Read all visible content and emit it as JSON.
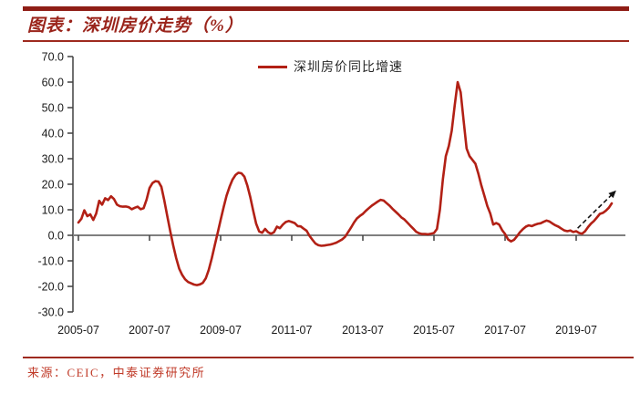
{
  "header": {
    "title": "图表：深圳房价走势（%）"
  },
  "footer": {
    "source": "来源：CEIC，中泰证券研究所"
  },
  "colors": {
    "accent_dark": "#8F1D15",
    "rule_red": "#9E2A1F",
    "title_text": "#9A241B",
    "source_text": "#C03A28",
    "line": "#B22015",
    "zero_line": "#7f7f7f",
    "axis": "#404040",
    "arrow": "#141414"
  },
  "chart_data": {
    "type": "line",
    "title": "深圳房价走势（%）",
    "legend": [
      {
        "name": "深圳房价同比增速",
        "color": "#B22015"
      }
    ],
    "freq": "monthly",
    "x_start": "2005-07",
    "x_end": "2020-07",
    "x_tick_labels": [
      "2005-07",
      "2007-07",
      "2009-07",
      "2011-07",
      "2013-07",
      "2015-07",
      "2017-07",
      "2019-07"
    ],
    "y_tick_labels": [
      "70.0",
      "60.0",
      "50.0",
      "40.0",
      "30.0",
      "20.0",
      "10.0",
      "0.0",
      "-10.0",
      "-20.0",
      "-30.0"
    ],
    "ylim": [
      -30,
      70
    ],
    "grid": false,
    "legend_position": "top-center",
    "values": [
      5.0,
      6.5,
      9.8,
      7.5,
      8.2,
      6.0,
      8.5,
      13.5,
      12.0,
      14.5,
      13.8,
      15.3,
      14.2,
      12.0,
      11.4,
      11.2,
      11.3,
      11.0,
      10.2,
      10.8,
      11.2,
      10.2,
      10.6,
      14.0,
      18.5,
      20.5,
      21.2,
      21.0,
      19.0,
      13.5,
      7.5,
      1.5,
      -4.0,
      -9.0,
      -13.0,
      -15.5,
      -17.2,
      -18.3,
      -18.8,
      -19.3,
      -19.5,
      -19.2,
      -18.6,
      -16.8,
      -13.5,
      -9.0,
      -4.0,
      1.0,
      6.0,
      11.0,
      15.5,
      19.0,
      21.8,
      23.6,
      24.5,
      24.3,
      23.0,
      19.5,
      15.0,
      9.5,
      4.5,
      1.5,
      1.0,
      2.5,
      1.2,
      0.6,
      1.2,
      3.4,
      2.8,
      4.2,
      5.2,
      5.6,
      5.2,
      4.8,
      3.6,
      3.5,
      2.6,
      1.8,
      -0.2,
      -1.8,
      -3.2,
      -3.9,
      -4.1,
      -4.0,
      -3.8,
      -3.6,
      -3.3,
      -2.9,
      -2.3,
      -1.6,
      -0.6,
      1.2,
      3.0,
      5.0,
      6.6,
      7.6,
      8.4,
      9.6,
      10.6,
      11.6,
      12.4,
      13.2,
      13.9,
      13.6,
      12.6,
      11.6,
      10.4,
      9.3,
      8.2,
      7.0,
      6.2,
      5.0,
      3.8,
      2.6,
      1.4,
      0.8,
      0.5,
      0.5,
      0.4,
      0.6,
      0.9,
      2.5,
      10.0,
      22.0,
      31.0,
      35.0,
      41.0,
      51.0,
      60.0,
      56.0,
      45.0,
      34.0,
      31.0,
      29.5,
      28.0,
      24.0,
      19.5,
      15.5,
      11.5,
      8.5,
      4.2,
      4.8,
      4.2,
      2.0,
      0.5,
      -1.6,
      -2.4,
      -1.8,
      -0.4,
      1.2,
      2.4,
      3.4,
      3.9,
      3.6,
      4.1,
      4.5,
      4.7,
      5.3,
      5.8,
      5.4,
      4.6,
      3.9,
      3.4,
      2.6,
      1.9,
      1.6,
      1.9,
      1.3,
      1.6,
      0.9,
      0.6,
      1.6,
      3.2,
      4.6,
      5.6,
      7.0,
      8.4,
      8.8,
      9.6,
      10.8,
      12.5
    ],
    "annotation_arrow": {
      "style": "dashed",
      "from_month_index": 168.5,
      "from_value": 2.8,
      "to_month_index": 181.5,
      "to_value": 17.6
    }
  }
}
